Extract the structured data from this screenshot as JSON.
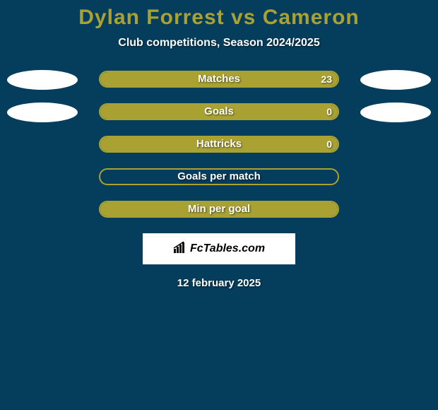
{
  "header": {
    "title": "Dylan Forrest vs Cameron",
    "subtitle": "Club competitions, Season 2024/2025"
  },
  "colors": {
    "background": "#053d5c",
    "accent": "#a9a233",
    "oval": "#ffffff",
    "text": "#ffffff"
  },
  "stats": [
    {
      "label": "Matches",
      "left_value": "",
      "right_value": "23",
      "fill_left_pct": 0,
      "fill_width_pct": 100,
      "show_left_oval": true,
      "show_right_oval": true
    },
    {
      "label": "Goals",
      "left_value": "",
      "right_value": "0",
      "fill_left_pct": 0,
      "fill_width_pct": 100,
      "show_left_oval": true,
      "show_right_oval": true
    },
    {
      "label": "Hattricks",
      "left_value": "",
      "right_value": "0",
      "fill_left_pct": 0,
      "fill_width_pct": 100,
      "show_left_oval": false,
      "show_right_oval": false
    },
    {
      "label": "Goals per match",
      "left_value": "",
      "right_value": "",
      "fill_left_pct": 0,
      "fill_width_pct": 0,
      "show_left_oval": false,
      "show_right_oval": false
    },
    {
      "label": "Min per goal",
      "left_value": "",
      "right_value": "",
      "fill_left_pct": 0,
      "fill_width_pct": 100,
      "show_left_oval": false,
      "show_right_oval": false
    }
  ],
  "footer": {
    "logo_text": "FcTables.com",
    "date": "12 february 2025"
  }
}
